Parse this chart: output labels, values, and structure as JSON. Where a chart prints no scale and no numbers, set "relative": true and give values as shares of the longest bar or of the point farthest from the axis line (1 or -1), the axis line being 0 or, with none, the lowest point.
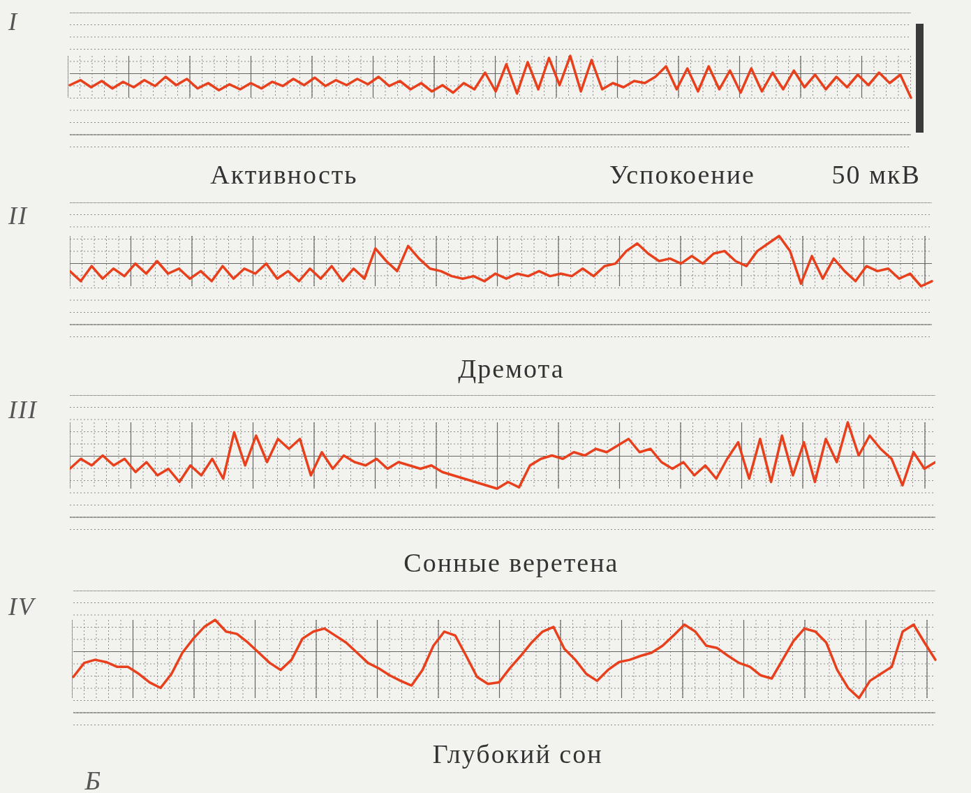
{
  "chart_data": [
    {
      "type": "line",
      "title": "I",
      "relative": true,
      "grid": true,
      "color": "#e8401c",
      "annotations": [
        "Активность",
        "Успокоение",
        "50 мкВ"
      ],
      "categories": [
        null,
        null,
        null,
        null,
        null,
        null,
        null,
        null,
        null,
        null,
        null,
        null,
        null,
        null,
        null,
        null,
        null,
        null,
        null,
        null,
        null,
        null,
        null,
        null,
        null,
        null,
        null,
        null,
        null,
        null,
        null,
        null,
        null,
        null,
        null,
        null,
        null,
        null,
        null,
        null,
        null,
        null,
        null,
        null,
        null,
        null,
        null,
        null,
        null,
        null,
        null,
        null,
        null,
        null,
        null,
        null,
        null,
        null,
        null,
        null,
        null,
        null,
        null,
        null,
        null,
        null,
        null,
        null,
        null,
        null,
        null,
        null,
        null,
        null,
        null,
        null,
        null,
        null,
        null,
        null
      ],
      "values": [
        0.3,
        0.42,
        0.25,
        0.4,
        0.22,
        0.38,
        0.25,
        0.42,
        0.28,
        0.5,
        0.3,
        0.45,
        0.22,
        0.35,
        0.18,
        0.32,
        0.2,
        0.35,
        0.22,
        0.38,
        0.28,
        0.45,
        0.3,
        0.48,
        0.28,
        0.42,
        0.3,
        0.45,
        0.32,
        0.5,
        0.28,
        0.4,
        0.2,
        0.35,
        0.15,
        0.3,
        0.12,
        0.35,
        0.2,
        0.6,
        0.15,
        0.8,
        0.1,
        0.85,
        0.2,
        0.95,
        0.3,
        1,
        0.15,
        0.9,
        0.2,
        0.35,
        0.25,
        0.4,
        0.35,
        0.5,
        0.75,
        0.2,
        0.7,
        0.15,
        0.75,
        0.2,
        0.65,
        0.12,
        0.7,
        0.15,
        0.6,
        0.2,
        0.65,
        0.25,
        0.55,
        0.2,
        0.5,
        0.25,
        0.55,
        0.3,
        0.6,
        0.35,
        0.55,
        0
      ]
    },
    {
      "type": "line",
      "title": "II",
      "relative": true,
      "grid": true,
      "color": "#e8401c",
      "annotations": [
        "Дремота"
      ],
      "categories": [
        null,
        null,
        null,
        null,
        null,
        null,
        null,
        null,
        null,
        null,
        null,
        null,
        null,
        null,
        null,
        null,
        null,
        null,
        null,
        null,
        null,
        null,
        null,
        null,
        null,
        null,
        null,
        null,
        null,
        null,
        null,
        null,
        null,
        null,
        null,
        null,
        null,
        null,
        null,
        null,
        null,
        null,
        null,
        null,
        null,
        null,
        null,
        null,
        null,
        null,
        null,
        null,
        null,
        null,
        null,
        null,
        null,
        null,
        null,
        null,
        null,
        null,
        null,
        null,
        null,
        null,
        null,
        null,
        null,
        null,
        null,
        null,
        null,
        null,
        null,
        null,
        null,
        null,
        null,
        null
      ],
      "values": [
        0.3,
        0.1,
        0.4,
        0.15,
        0.35,
        0.2,
        0.45,
        0.25,
        0.5,
        0.25,
        0.35,
        0.15,
        0.3,
        0.1,
        0.4,
        0.15,
        0.35,
        0.25,
        0.45,
        0.15,
        0.3,
        0.1,
        0.35,
        0.15,
        0.4,
        0.1,
        0.35,
        0.15,
        0.75,
        0.5,
        0.3,
        0.8,
        0.55,
        0.35,
        0.3,
        0.2,
        0.15,
        0.2,
        0.1,
        0.25,
        0.15,
        0.25,
        0.2,
        0.3,
        0.2,
        0.25,
        0.2,
        0.35,
        0.2,
        0.4,
        0.45,
        0.7,
        0.85,
        0.65,
        0.5,
        0.55,
        0.45,
        0.6,
        0.45,
        0.65,
        0.7,
        0.5,
        0.4,
        0.7,
        0.85,
        1,
        0.7,
        0.05,
        0.6,
        0.15,
        0.55,
        0.3,
        0.1,
        0.4,
        0.3,
        0.35,
        0.15,
        0.25,
        0,
        0.1
      ]
    },
    {
      "type": "line",
      "title": "III",
      "relative": true,
      "grid": true,
      "color": "#e8401c",
      "annotations": [
        "Сонные веретена"
      ],
      "categories": [
        null,
        null,
        null,
        null,
        null,
        null,
        null,
        null,
        null,
        null,
        null,
        null,
        null,
        null,
        null,
        null,
        null,
        null,
        null,
        null,
        null,
        null,
        null,
        null,
        null,
        null,
        null,
        null,
        null,
        null,
        null,
        null,
        null,
        null,
        null,
        null,
        null,
        null,
        null,
        null,
        null,
        null,
        null,
        null,
        null,
        null,
        null,
        null,
        null,
        null,
        null,
        null,
        null,
        null,
        null,
        null,
        null,
        null,
        null,
        null,
        null,
        null,
        null,
        null,
        null,
        null,
        null,
        null,
        null,
        null,
        null,
        null,
        null,
        null,
        null,
        null,
        null,
        null,
        null,
        null
      ],
      "values": [
        0.3,
        0.45,
        0.35,
        0.5,
        0.35,
        0.45,
        0.25,
        0.4,
        0.2,
        0.3,
        0.1,
        0.35,
        0.2,
        0.45,
        0.15,
        0.85,
        0.35,
        0.8,
        0.4,
        0.75,
        0.6,
        0.75,
        0.2,
        0.55,
        0.3,
        0.5,
        0.4,
        0.35,
        0.45,
        0.3,
        0.4,
        0.35,
        0.3,
        0.35,
        0.25,
        0.2,
        0.15,
        0.1,
        0.05,
        0,
        0.1,
        0.02,
        0.35,
        0.45,
        0.5,
        0.45,
        0.55,
        0.5,
        0.6,
        0.55,
        0.65,
        0.75,
        0.55,
        0.6,
        0.4,
        0.3,
        0.4,
        0.2,
        0.35,
        0.15,
        0.45,
        0.7,
        0.15,
        0.75,
        0.1,
        0.8,
        0.2,
        0.7,
        0.1,
        0.75,
        0.4,
        1,
        0.5,
        0.8,
        0.6,
        0.45,
        0.05,
        0.55,
        0.3,
        0.4
      ]
    },
    {
      "type": "line",
      "title": "IV",
      "relative": true,
      "grid": true,
      "color": "#e8401c",
      "annotations": [
        "Глубокий сон",
        "Б"
      ],
      "categories": [
        null,
        null,
        null,
        null,
        null,
        null,
        null,
        null,
        null,
        null,
        null,
        null,
        null,
        null,
        null,
        null,
        null,
        null,
        null,
        null,
        null,
        null,
        null,
        null,
        null,
        null,
        null,
        null,
        null,
        null,
        null,
        null,
        null,
        null,
        null,
        null,
        null,
        null,
        null,
        null,
        null,
        null,
        null,
        null,
        null,
        null,
        null,
        null,
        null,
        null,
        null,
        null,
        null,
        null,
        null,
        null,
        null,
        null,
        null,
        null,
        null,
        null,
        null,
        null,
        null,
        null,
        null,
        null,
        null,
        null,
        null,
        null,
        null,
        null,
        null,
        null,
        null,
        null,
        null,
        null
      ],
      "values": [
        0.27,
        0.45,
        0.49,
        0.46,
        0.4,
        0.4,
        0.31,
        0.2,
        0.13,
        0.31,
        0.58,
        0.76,
        0.91,
        1,
        0.85,
        0.82,
        0.71,
        0.58,
        0.45,
        0.36,
        0.49,
        0.76,
        0.85,
        0.89,
        0.8,
        0.71,
        0.58,
        0.45,
        0.38,
        0.29,
        0.22,
        0.16,
        0.36,
        0.67,
        0.85,
        0.8,
        0.54,
        0.27,
        0.18,
        0.2,
        0.38,
        0.54,
        0.71,
        0.85,
        0.91,
        0.63,
        0.49,
        0.31,
        0.22,
        0.36,
        0.46,
        0.49,
        0.54,
        0.58,
        0.67,
        0.8,
        0.94,
        0.85,
        0.67,
        0.64,
        0.54,
        0.45,
        0.4,
        0.29,
        0.25,
        0.49,
        0.73,
        0.89,
        0.85,
        0.71,
        0.36,
        0.13,
        0,
        0.22,
        0.31,
        0.4,
        0.85,
        0.94,
        0.71,
        0.49
      ]
    }
  ]
}
